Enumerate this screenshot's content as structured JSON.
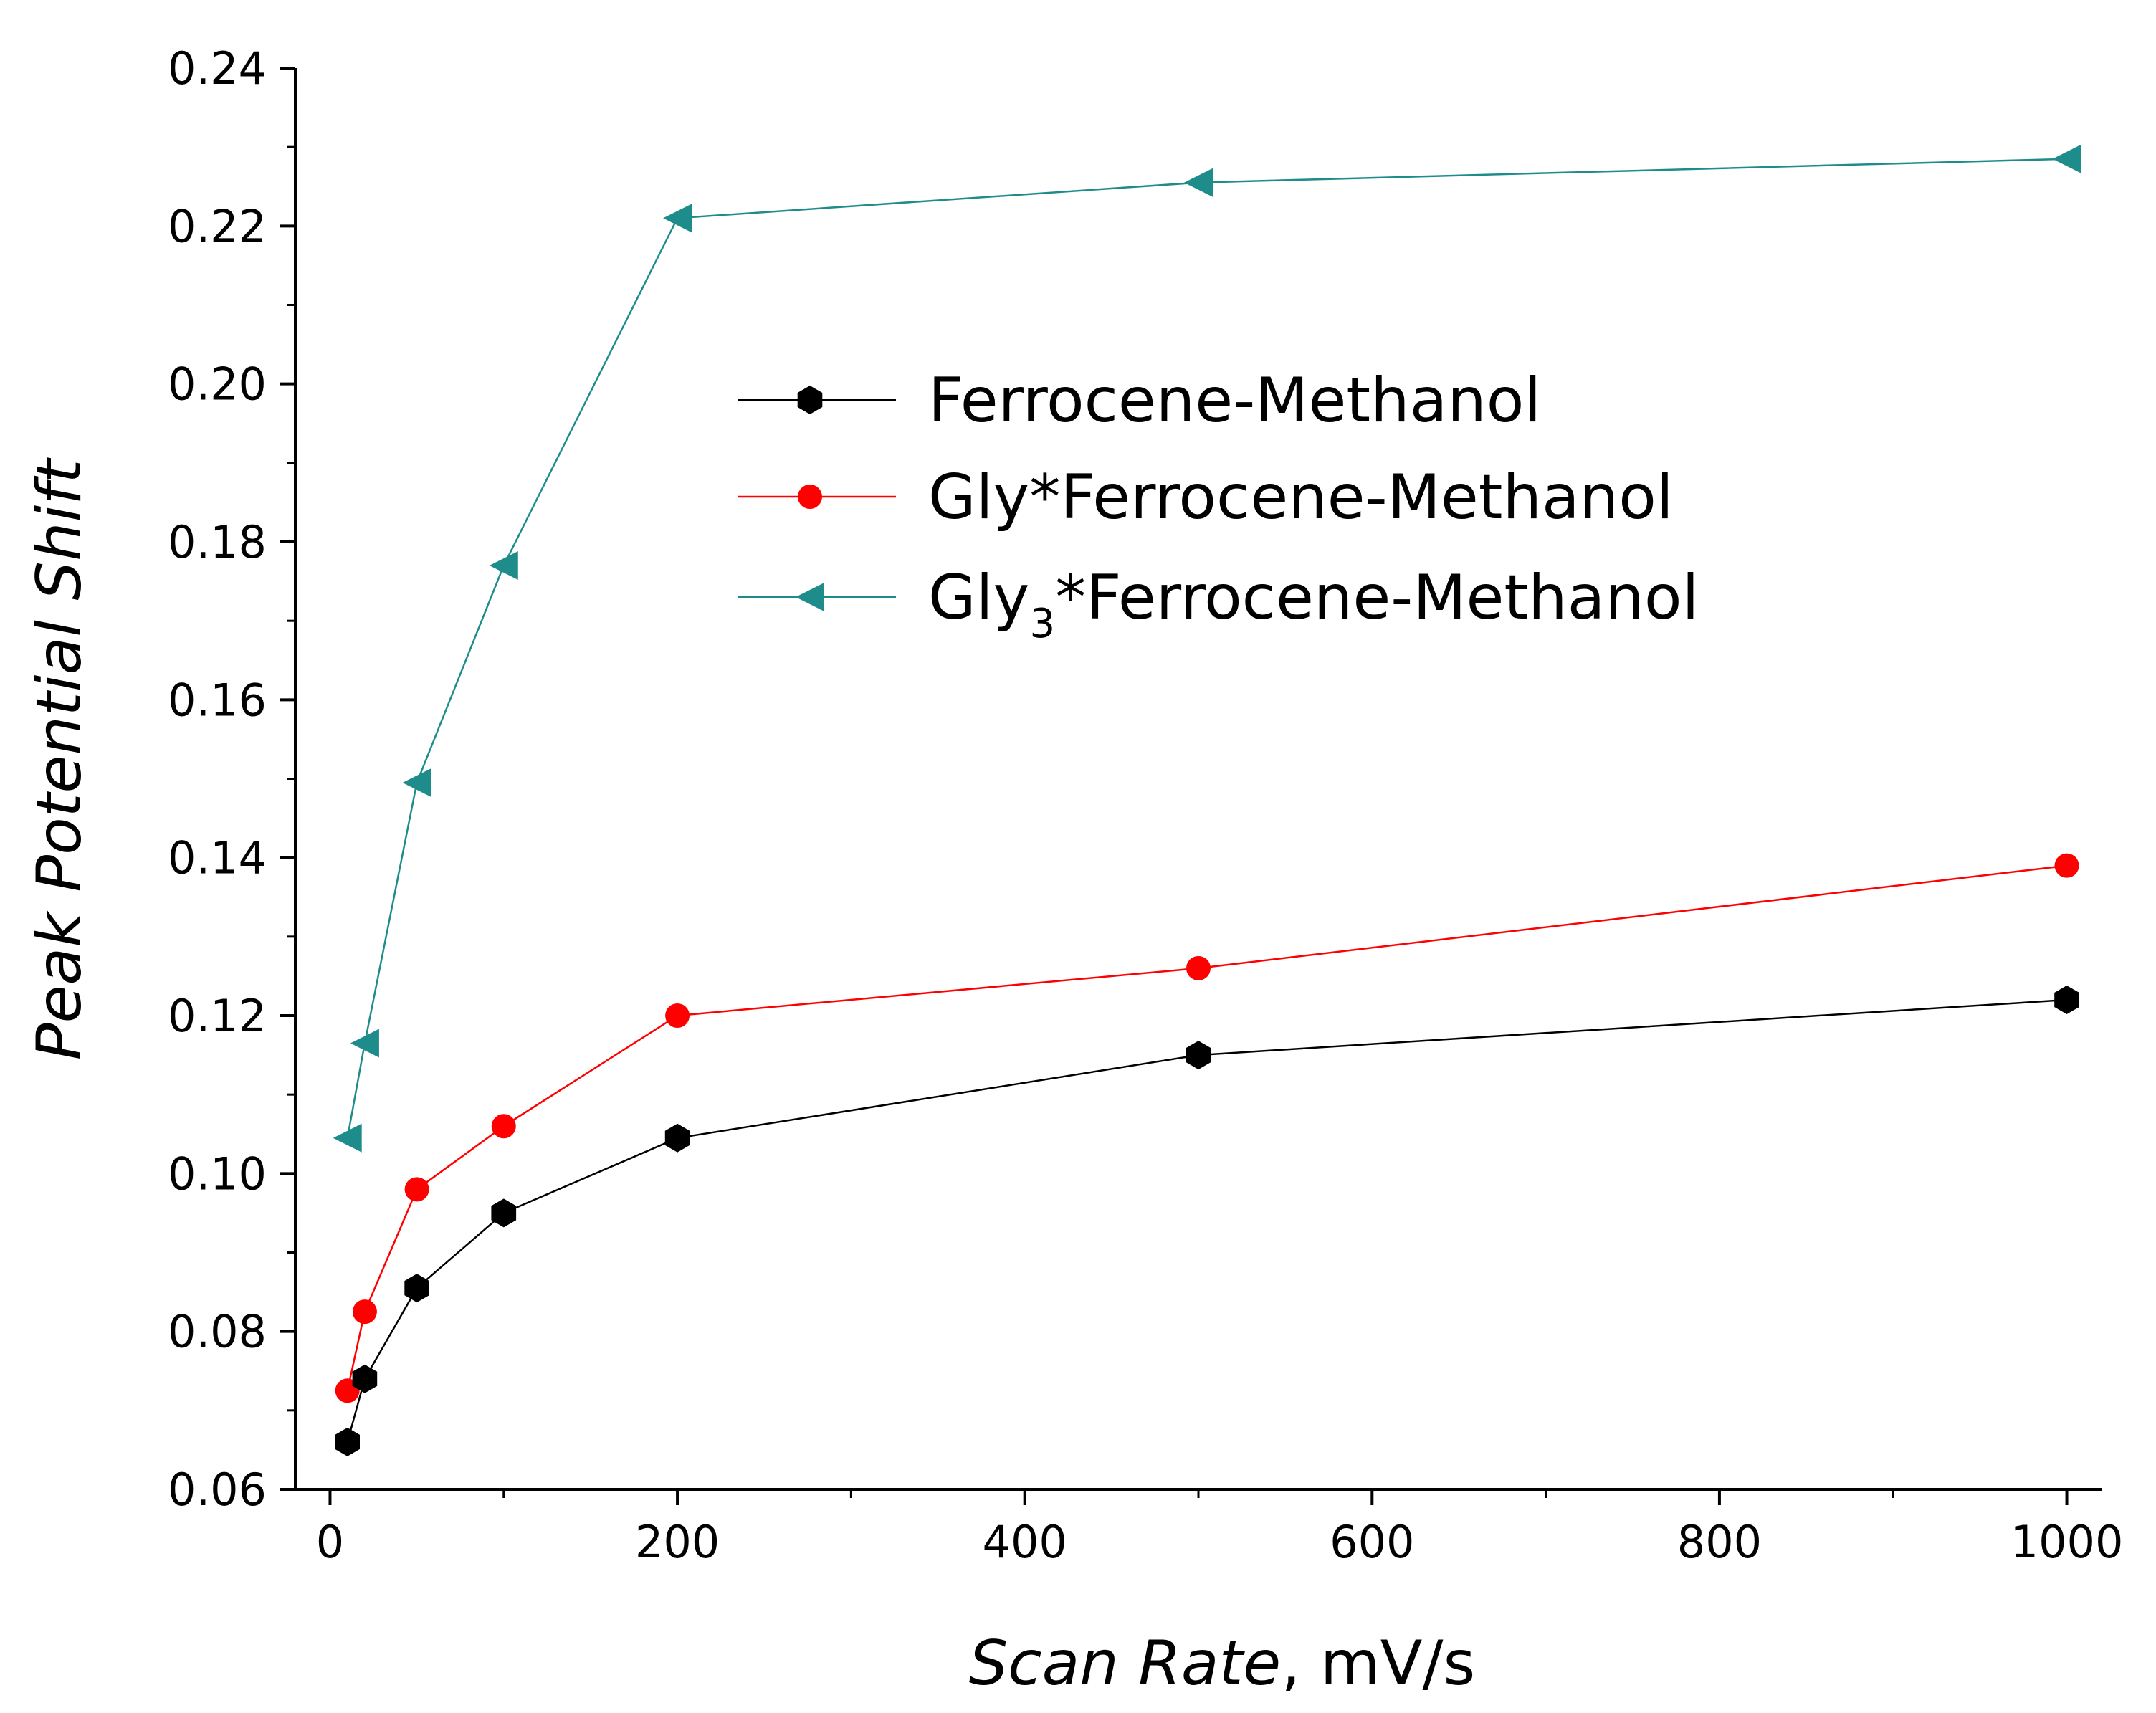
{
  "chart_data": {
    "type": "line",
    "title": "",
    "xlabel": {
      "italic": "Scan Rate",
      "plain": ", mV/s"
    },
    "ylabel": "Peak Potential Shift",
    "xlim": [
      -20,
      1020
    ],
    "ylim": [
      0.06,
      0.24
    ],
    "x_ticks": [
      0,
      200,
      400,
      600,
      800,
      1000
    ],
    "x_tick_labels": [
      "0",
      "200",
      "400",
      "600",
      "800",
      "1000"
    ],
    "y_ticks": [
      0.06,
      0.08,
      0.1,
      0.12,
      0.14,
      0.16,
      0.18,
      0.2,
      0.22,
      0.24
    ],
    "y_tick_labels": [
      "0.06",
      "0.08",
      "0.10",
      "0.12",
      "0.14",
      "0.16",
      "0.18",
      "0.20",
      "0.22",
      "0.24"
    ],
    "grid": false,
    "legend_position": "center",
    "series": [
      {
        "name": "Ferrocene-Methanol",
        "legend_label": {
          "pre": "Ferrocene-Methanol",
          "sub": "",
          "post": ""
        },
        "color": "#000000",
        "marker": "hexagon",
        "x": [
          10,
          20,
          50,
          100,
          200,
          500,
          1000
        ],
        "y": [
          0.066,
          0.074,
          0.0855,
          0.095,
          0.1045,
          0.115,
          0.122
        ]
      },
      {
        "name": "Gly*Ferrocene-Methanol",
        "legend_label": {
          "pre": "Gly*Ferrocene-Methanol",
          "sub": "",
          "post": ""
        },
        "color": "#ff0000",
        "marker": "circle",
        "x": [
          10,
          20,
          50,
          100,
          200,
          500,
          1000
        ],
        "y": [
          0.0725,
          0.0825,
          0.098,
          0.106,
          0.12,
          0.126,
          0.139
        ]
      },
      {
        "name": "Gly3*Ferrocene-Methanol",
        "legend_label": {
          "pre": "Gly",
          "sub": "3",
          "post": "*Ferrocene-Methanol"
        },
        "color": "#1f8c8c",
        "marker": "triangle-left",
        "x": [
          10,
          20,
          50,
          100,
          200,
          500,
          1000
        ],
        "y": [
          0.1045,
          0.1165,
          0.1495,
          0.177,
          0.221,
          0.2255,
          0.2285
        ]
      }
    ]
  }
}
